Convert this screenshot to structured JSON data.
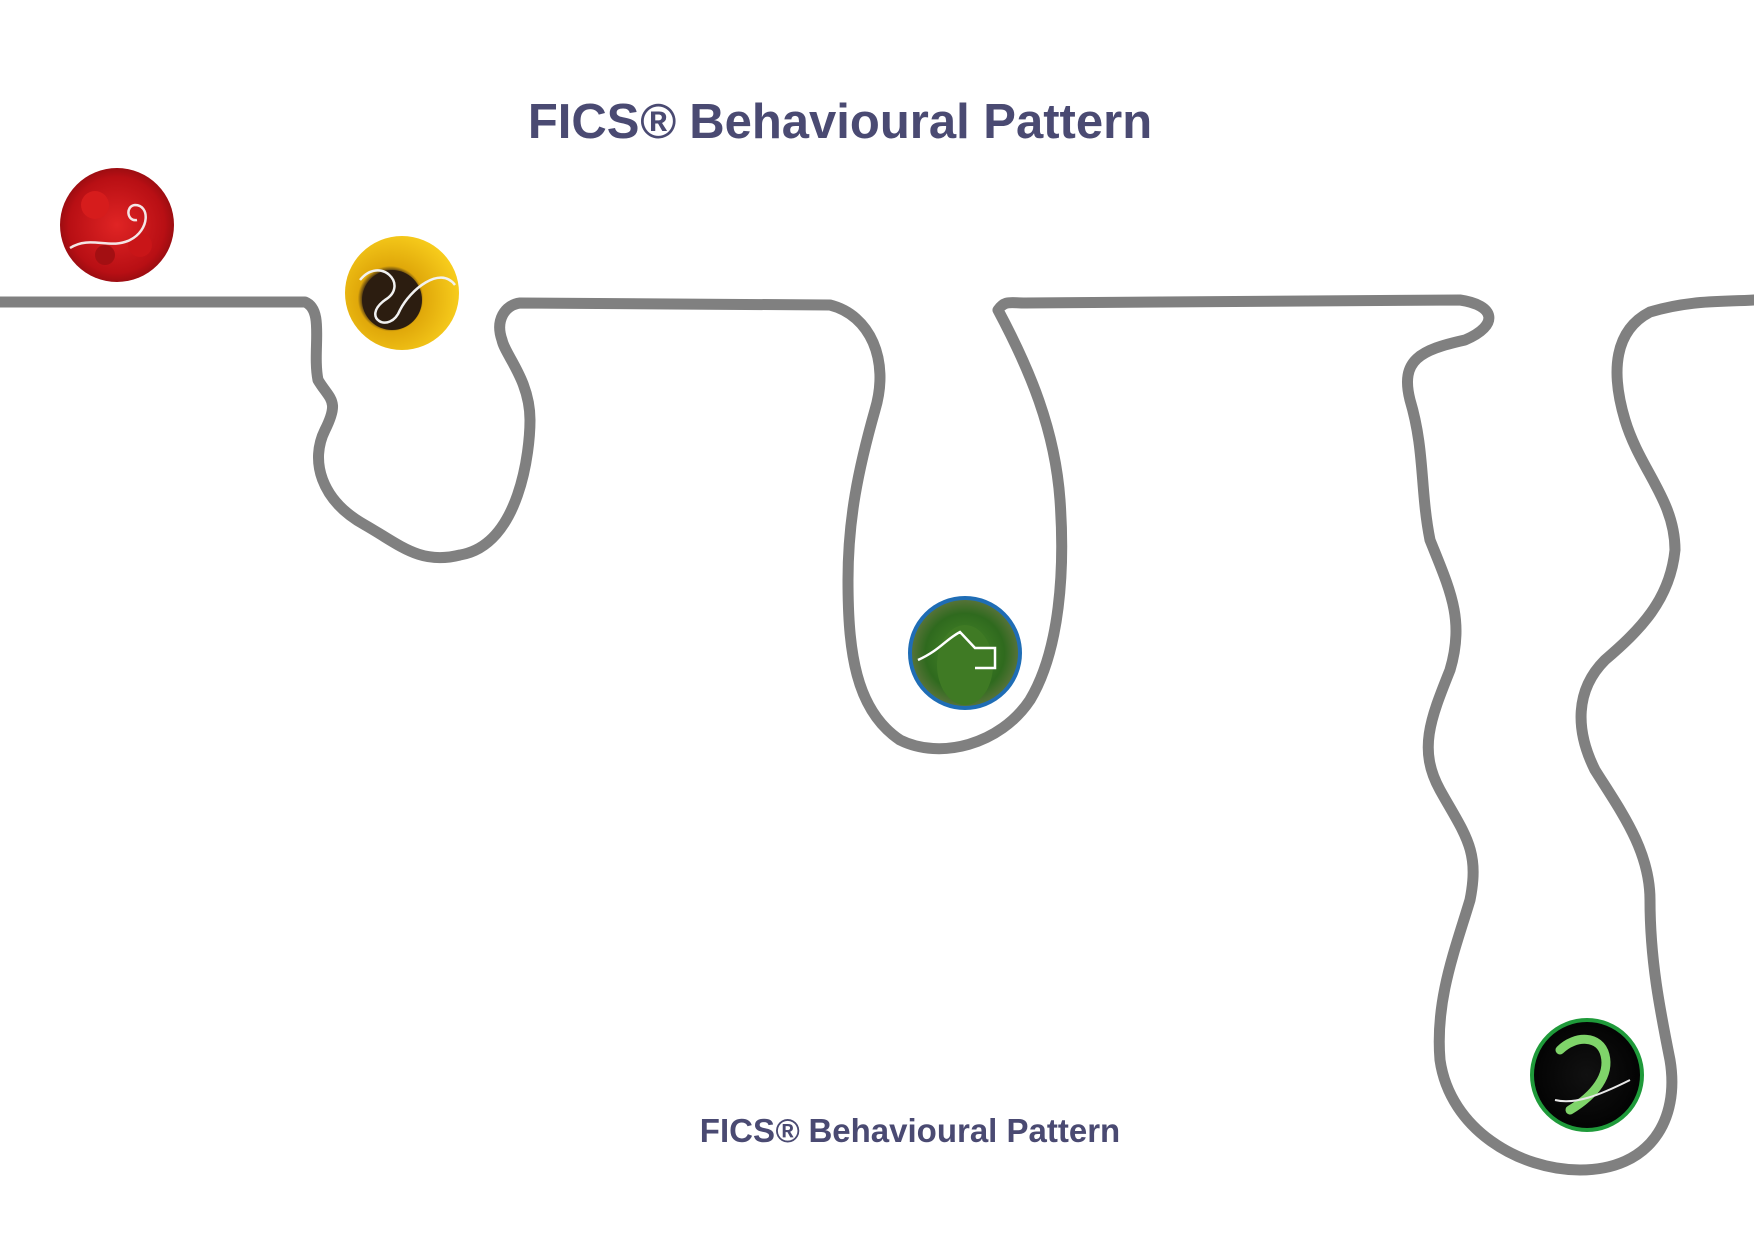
{
  "title": {
    "main": "FICS",
    "reg": "®",
    "rest": " Behavioural Pattern"
  },
  "footer": {
    "main": "FICS",
    "reg": "®",
    "rest": " Behavioural Pattern"
  },
  "colors": {
    "text": "#4a4a72",
    "path": "#808080",
    "red": "#cc1a1a",
    "yellow": "#f2c414",
    "blue": "#1f6db5",
    "green": "#1f9a3a"
  },
  "badges": [
    {
      "name": "red-flower-badge",
      "theme": "red petals with spiral line"
    },
    {
      "name": "sunflower-badge",
      "theme": "yellow sunflower with loop line"
    },
    {
      "name": "cactus-badge",
      "theme": "green cactus with angular line"
    },
    {
      "name": "fern-badge",
      "theme": "green fern on black with curl line"
    }
  ]
}
